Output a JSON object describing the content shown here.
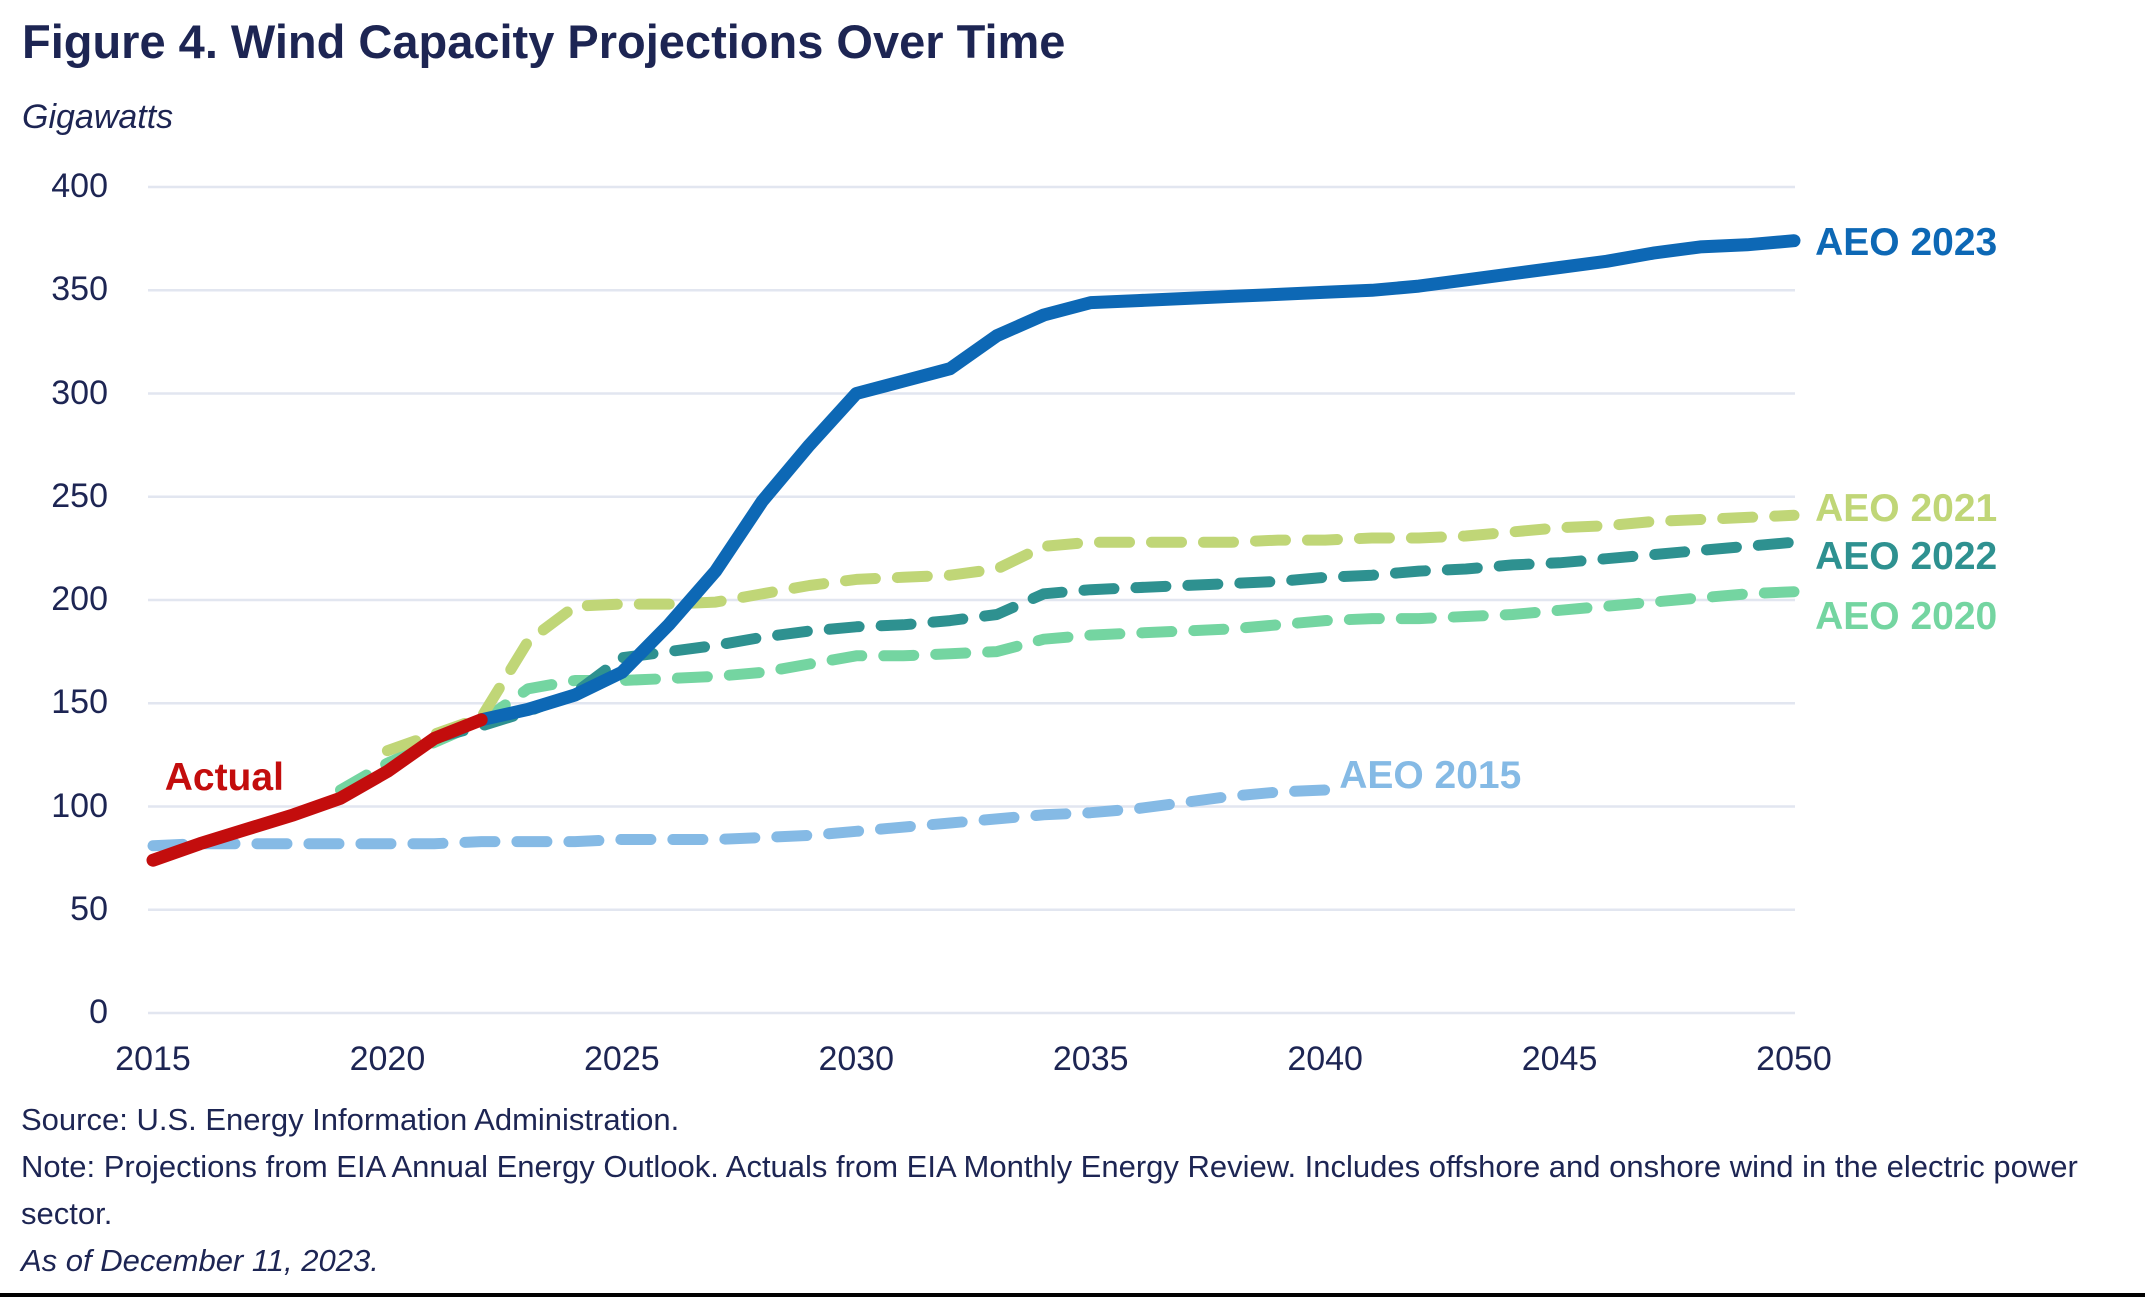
{
  "page": {
    "title": "Figure 4. Wind Capacity Projections Over Time",
    "subtitle": "Gigawatts",
    "footer": {
      "source": "Source: U.S. Energy Information Administration.",
      "note": "Note: Projections from EIA Annual Energy Outlook. Actuals from EIA Monthly Energy Review. Includes offshore and onshore wind in the electric power sector.",
      "as_of": "As of December 11, 2023."
    },
    "colors": {
      "text_navy": "#1D2553",
      "gridline": "#E2E6F0",
      "bottom_rule": "#000000"
    }
  },
  "chart_data": {
    "type": "line",
    "title": "Figure 4. Wind Capacity Projections Over Time",
    "xlabel": "",
    "ylabel": "Gigawatts",
    "xlim": [
      2015,
      2050
    ],
    "ylim": [
      0,
      400
    ],
    "x_ticks": [
      2015,
      2020,
      2025,
      2030,
      2035,
      2040,
      2045,
      2050
    ],
    "y_ticks": [
      0,
      50,
      100,
      150,
      200,
      250,
      300,
      350,
      400
    ],
    "grid": "horizontal-only",
    "legend_position": "direct line labels",
    "series": [
      {
        "name": "AEO 2015",
        "color": "#85BAE5",
        "style": "dashed",
        "label_at": {
          "x_year": 2040.3,
          "y_gw": 115
        },
        "points": [
          [
            2015,
            81
          ],
          [
            2016,
            82
          ],
          [
            2017,
            82
          ],
          [
            2018,
            82
          ],
          [
            2019,
            82
          ],
          [
            2020,
            82
          ],
          [
            2021,
            82
          ],
          [
            2022,
            83
          ],
          [
            2023,
            83
          ],
          [
            2024,
            83
          ],
          [
            2025,
            84
          ],
          [
            2026,
            84
          ],
          [
            2027,
            84
          ],
          [
            2028,
            85
          ],
          [
            2029,
            86
          ],
          [
            2030,
            88
          ],
          [
            2031,
            90
          ],
          [
            2032,
            92
          ],
          [
            2033,
            94
          ],
          [
            2034,
            96
          ],
          [
            2035,
            97
          ],
          [
            2036,
            99
          ],
          [
            2037,
            102
          ],
          [
            2038,
            105
          ],
          [
            2039,
            107
          ],
          [
            2040,
            108
          ]
        ]
      },
      {
        "name": "AEO 2020",
        "color": "#74D5A1",
        "style": "dashed",
        "label_at": {
          "x_year": 2050.45,
          "y_gw": 192
        },
        "points": [
          [
            2019,
            108
          ],
          [
            2020,
            121
          ],
          [
            2021,
            131
          ],
          [
            2022,
            141
          ],
          [
            2023,
            157
          ],
          [
            2024,
            161
          ],
          [
            2025,
            161
          ],
          [
            2026,
            162
          ],
          [
            2027,
            163
          ],
          [
            2028,
            165
          ],
          [
            2029,
            169
          ],
          [
            2030,
            173
          ],
          [
            2031,
            173
          ],
          [
            2032,
            174
          ],
          [
            2033,
            175
          ],
          [
            2034,
            181
          ],
          [
            2035,
            183
          ],
          [
            2036,
            184
          ],
          [
            2037,
            185
          ],
          [
            2038,
            186
          ],
          [
            2039,
            188
          ],
          [
            2040,
            190
          ],
          [
            2041,
            191
          ],
          [
            2042,
            191
          ],
          [
            2043,
            192
          ],
          [
            2044,
            193
          ],
          [
            2045,
            195
          ],
          [
            2046,
            197
          ],
          [
            2047,
            199
          ],
          [
            2048,
            201
          ],
          [
            2049,
            203
          ],
          [
            2050,
            204
          ]
        ]
      },
      {
        "name": "AEO 2021",
        "color": "#C0D677",
        "style": "dashed",
        "label_at": {
          "x_year": 2050.45,
          "y_gw": 244
        },
        "points": [
          [
            2020,
            127
          ],
          [
            2021,
            135
          ],
          [
            2022,
            143
          ],
          [
            2023,
            180
          ],
          [
            2024,
            197
          ],
          [
            2025,
            198
          ],
          [
            2026,
            198
          ],
          [
            2027,
            199
          ],
          [
            2028,
            203
          ],
          [
            2029,
            207
          ],
          [
            2030,
            210
          ],
          [
            2031,
            211
          ],
          [
            2032,
            212
          ],
          [
            2033,
            215
          ],
          [
            2034,
            226
          ],
          [
            2035,
            228
          ],
          [
            2036,
            228
          ],
          [
            2037,
            228
          ],
          [
            2038,
            228
          ],
          [
            2039,
            229
          ],
          [
            2040,
            229
          ],
          [
            2041,
            230
          ],
          [
            2042,
            230
          ],
          [
            2043,
            231
          ],
          [
            2044,
            233
          ],
          [
            2045,
            235
          ],
          [
            2046,
            236
          ],
          [
            2047,
            238
          ],
          [
            2048,
            239
          ],
          [
            2049,
            240
          ],
          [
            2050,
            241
          ]
        ]
      },
      {
        "name": "AEO 2022",
        "color": "#2E9190",
        "style": "dashed",
        "label_at": {
          "x_year": 2050.45,
          "y_gw": 221
        },
        "points": [
          [
            2021,
            133
          ],
          [
            2022,
            139
          ],
          [
            2023,
            146
          ],
          [
            2024,
            155
          ],
          [
            2025,
            172
          ],
          [
            2026,
            175
          ],
          [
            2027,
            178
          ],
          [
            2028,
            182
          ],
          [
            2029,
            185
          ],
          [
            2030,
            187
          ],
          [
            2031,
            188
          ],
          [
            2032,
            190
          ],
          [
            2033,
            193
          ],
          [
            2034,
            203
          ],
          [
            2035,
            205
          ],
          [
            2036,
            206
          ],
          [
            2037,
            207
          ],
          [
            2038,
            208
          ],
          [
            2039,
            209
          ],
          [
            2040,
            211
          ],
          [
            2041,
            212
          ],
          [
            2042,
            214
          ],
          [
            2043,
            215
          ],
          [
            2044,
            217
          ],
          [
            2045,
            218
          ],
          [
            2046,
            220
          ],
          [
            2047,
            222
          ],
          [
            2048,
            224
          ],
          [
            2049,
            226
          ],
          [
            2050,
            228
          ]
        ]
      },
      {
        "name": "AEO 2023",
        "color": "#0D68B5",
        "style": "solid",
        "label_at": {
          "x_year": 2050.45,
          "y_gw": 373
        },
        "points": [
          [
            2022,
            142
          ],
          [
            2023,
            147
          ],
          [
            2024,
            154
          ],
          [
            2025,
            165
          ],
          [
            2026,
            188
          ],
          [
            2027,
            214
          ],
          [
            2028,
            248
          ],
          [
            2029,
            275
          ],
          [
            2030,
            300
          ],
          [
            2031,
            306
          ],
          [
            2032,
            312
          ],
          [
            2033,
            328
          ],
          [
            2034,
            338
          ],
          [
            2035,
            344
          ],
          [
            2036,
            345
          ],
          [
            2037,
            346
          ],
          [
            2038,
            347
          ],
          [
            2039,
            348
          ],
          [
            2040,
            349
          ],
          [
            2041,
            350
          ],
          [
            2042,
            352
          ],
          [
            2043,
            355
          ],
          [
            2044,
            358
          ],
          [
            2045,
            361
          ],
          [
            2046,
            364
          ],
          [
            2047,
            368
          ],
          [
            2048,
            371
          ],
          [
            2049,
            372
          ],
          [
            2050,
            374
          ]
        ]
      },
      {
        "name": "Actual",
        "color": "#C30D0D",
        "style": "solid",
        "label_at": {
          "x_year": 2015.25,
          "y_gw": 114,
          "align": "left"
        },
        "points": [
          [
            2015,
            74
          ],
          [
            2016,
            82
          ],
          [
            2017,
            89
          ],
          [
            2018,
            96
          ],
          [
            2019,
            104
          ],
          [
            2020,
            117
          ],
          [
            2021,
            133
          ],
          [
            2022,
            142
          ]
        ]
      }
    ]
  }
}
